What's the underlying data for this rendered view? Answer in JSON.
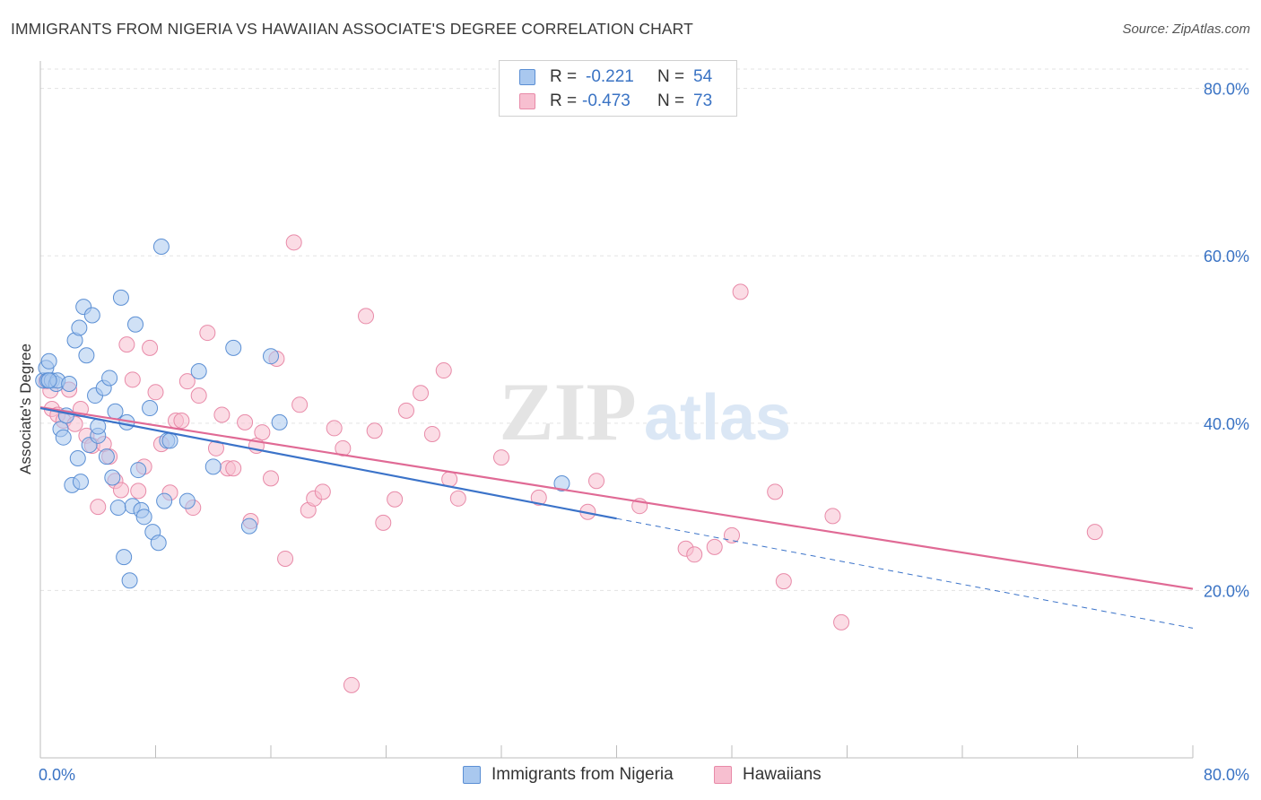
{
  "header": {
    "title": "IMMIGRANTS FROM NIGERIA VS HAWAIIAN ASSOCIATE'S DEGREE CORRELATION CHART",
    "source": "Source: ZipAtlas.com"
  },
  "watermark": {
    "zip": "ZIP",
    "atlas": "atlas"
  },
  "legend_top": {
    "rows": [
      {
        "r_label": "R =",
        "r_value": "-0.221",
        "n_label": "N =",
        "n_value": "54"
      },
      {
        "r_label": "R =",
        "r_value": "-0.473",
        "n_label": "N =",
        "n_value": "73"
      }
    ]
  },
  "legend_bottom": {
    "items": [
      {
        "label": "Immigrants from Nigeria"
      },
      {
        "label": "Hawaiians"
      }
    ]
  },
  "colors": {
    "nigeria_fill": "#a9c8ef",
    "nigeria_stroke": "#5b8fd4",
    "nigeria_line": "#3b73c9",
    "hawaiian_fill": "#f7bfd0",
    "hawaiian_stroke": "#e88aa8",
    "hawaiian_line": "#e06a95",
    "tick_label": "#3a73c4",
    "grid": "#e3e3e3"
  },
  "chart_data": {
    "type": "scatter",
    "title": "IMMIGRANTS FROM NIGERIA VS HAWAIIAN ASSOCIATE'S DEGREE CORRELATION CHART",
    "xlabel": "",
    "ylabel": "Associate's Degree",
    "xlim": [
      0,
      80
    ],
    "ylim": [
      0,
      82
    ],
    "x_tick_labels": [
      "0.0%",
      "80.0%"
    ],
    "y_ticks": [
      20,
      40,
      60,
      80
    ],
    "y_tick_labels": [
      "20.0%",
      "40.0%",
      "60.0%",
      "80.0%"
    ],
    "grid": true,
    "legend_position": "top-center",
    "series": [
      {
        "name": "Immigrants from Nigeria",
        "r": -0.221,
        "n": 54,
        "trend": {
          "x0": 0,
          "y0": 41.8,
          "x1": 40,
          "y1": 28.6,
          "dash_to_x": 80,
          "dash_to_y": 15.5
        },
        "points": [
          [
            0.2,
            45.1
          ],
          [
            0.4,
            46.6
          ],
          [
            0.5,
            45.1
          ],
          [
            0.6,
            47.4
          ],
          [
            0.8,
            45.1
          ],
          [
            1.1,
            44.7
          ],
          [
            1.2,
            45.1
          ],
          [
            1.4,
            39.3
          ],
          [
            1.6,
            38.3
          ],
          [
            1.8,
            40.9
          ],
          [
            2.0,
            44.7
          ],
          [
            2.2,
            32.6
          ],
          [
            2.4,
            49.9
          ],
          [
            2.6,
            35.8
          ],
          [
            2.7,
            51.4
          ],
          [
            2.8,
            33.0
          ],
          [
            3.0,
            53.9
          ],
          [
            3.2,
            48.1
          ],
          [
            3.4,
            37.4
          ],
          [
            3.6,
            52.9
          ],
          [
            3.8,
            43.3
          ],
          [
            4.0,
            38.5
          ],
          [
            4.0,
            39.6
          ],
          [
            4.4,
            44.2
          ],
          [
            4.6,
            36.0
          ],
          [
            4.8,
            45.4
          ],
          [
            5.0,
            33.5
          ],
          [
            5.2,
            41.4
          ],
          [
            5.4,
            29.9
          ],
          [
            5.6,
            55.0
          ],
          [
            5.8,
            24.0
          ],
          [
            6.0,
            40.1
          ],
          [
            6.2,
            21.2
          ],
          [
            6.4,
            30.1
          ],
          [
            6.6,
            51.8
          ],
          [
            6.8,
            34.4
          ],
          [
            7.0,
            29.6
          ],
          [
            7.2,
            28.8
          ],
          [
            7.6,
            41.8
          ],
          [
            7.8,
            27.0
          ],
          [
            8.2,
            25.7
          ],
          [
            8.4,
            61.1
          ],
          [
            8.6,
            30.7
          ],
          [
            8.8,
            37.9
          ],
          [
            9.0,
            37.9
          ],
          [
            10.2,
            30.7
          ],
          [
            11.0,
            46.2
          ],
          [
            12.0,
            34.8
          ],
          [
            13.4,
            49.0
          ],
          [
            14.5,
            27.7
          ],
          [
            16.0,
            48.0
          ],
          [
            16.6,
            40.1
          ],
          [
            36.2,
            32.8
          ],
          [
            0.6,
            45.1
          ]
        ]
      },
      {
        "name": "Hawaiians",
        "r": -0.473,
        "n": 73,
        "trend": {
          "x0": 0,
          "y0": 41.9,
          "x1": 80,
          "y1": 20.2
        },
        "points": [
          [
            0.4,
            45.0
          ],
          [
            0.7,
            43.9
          ],
          [
            0.8,
            41.7
          ],
          [
            1.2,
            41.0
          ],
          [
            1.6,
            40.3
          ],
          [
            2.0,
            44.0
          ],
          [
            2.4,
            39.9
          ],
          [
            2.8,
            41.7
          ],
          [
            3.2,
            38.5
          ],
          [
            3.6,
            37.3
          ],
          [
            4.0,
            30.0
          ],
          [
            4.4,
            37.5
          ],
          [
            4.8,
            36.0
          ],
          [
            5.2,
            33.1
          ],
          [
            5.6,
            32.0
          ],
          [
            6.0,
            49.4
          ],
          [
            6.4,
            45.2
          ],
          [
            6.8,
            31.9
          ],
          [
            7.2,
            34.8
          ],
          [
            7.6,
            49.0
          ],
          [
            8.0,
            43.7
          ],
          [
            8.4,
            37.5
          ],
          [
            9.0,
            31.7
          ],
          [
            9.4,
            40.3
          ],
          [
            9.8,
            40.3
          ],
          [
            10.2,
            45.0
          ],
          [
            10.6,
            29.9
          ],
          [
            11.0,
            43.3
          ],
          [
            11.6,
            50.8
          ],
          [
            12.2,
            37.0
          ],
          [
            12.6,
            41.0
          ],
          [
            13.0,
            34.6
          ],
          [
            13.4,
            34.6
          ],
          [
            14.2,
            40.1
          ],
          [
            14.6,
            28.3
          ],
          [
            15.0,
            37.3
          ],
          [
            15.4,
            38.9
          ],
          [
            16.0,
            33.4
          ],
          [
            16.4,
            47.7
          ],
          [
            17.0,
            23.8
          ],
          [
            17.6,
            61.6
          ],
          [
            18.0,
            42.2
          ],
          [
            18.6,
            29.6
          ],
          [
            19.0,
            31.0
          ],
          [
            19.6,
            31.8
          ],
          [
            20.4,
            39.4
          ],
          [
            21.0,
            37.0
          ],
          [
            21.6,
            8.7
          ],
          [
            22.6,
            52.8
          ],
          [
            23.2,
            39.1
          ],
          [
            23.8,
            28.1
          ],
          [
            24.6,
            30.9
          ],
          [
            25.4,
            41.5
          ],
          [
            26.4,
            43.6
          ],
          [
            27.2,
            38.7
          ],
          [
            28.0,
            46.3
          ],
          [
            28.4,
            33.3
          ],
          [
            29.0,
            31.0
          ],
          [
            32.0,
            35.9
          ],
          [
            34.6,
            31.1
          ],
          [
            38.0,
            29.4
          ],
          [
            38.6,
            33.1
          ],
          [
            41.6,
            30.1
          ],
          [
            44.8,
            25.0
          ],
          [
            45.4,
            24.3
          ],
          [
            46.8,
            25.2
          ],
          [
            48.0,
            26.6
          ],
          [
            48.6,
            55.7
          ],
          [
            51.0,
            31.8
          ],
          [
            51.6,
            21.1
          ],
          [
            55.0,
            28.9
          ],
          [
            55.6,
            16.2
          ],
          [
            73.2,
            27.0
          ]
        ]
      }
    ]
  }
}
